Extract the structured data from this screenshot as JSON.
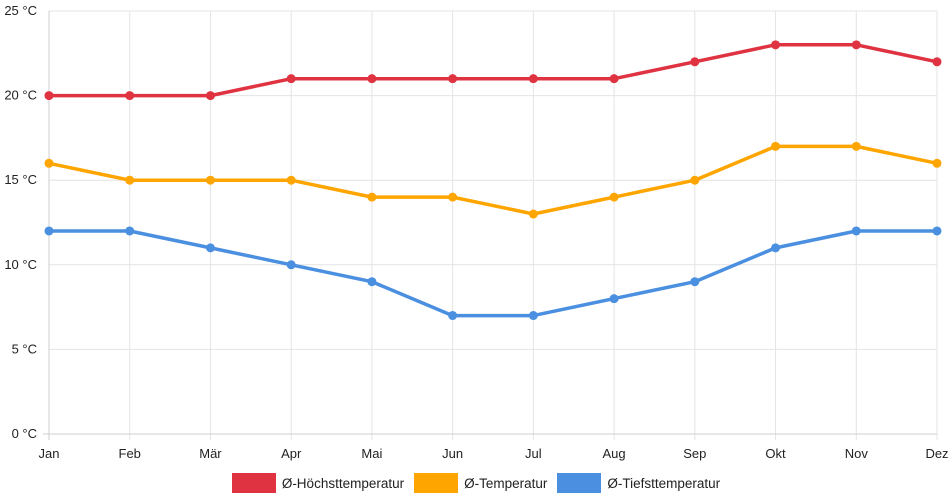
{
  "chart_data": {
    "type": "line",
    "categories": [
      "Jan",
      "Feb",
      "Mär",
      "Apr",
      "Mai",
      "Jun",
      "Jul",
      "Aug",
      "Sep",
      "Okt",
      "Nov",
      "Dez"
    ],
    "series": [
      {
        "name": "Ø-Höchsttemperatur",
        "color": "#e03342",
        "values": [
          20,
          20,
          20,
          21,
          21,
          21,
          21,
          21,
          22,
          23,
          23,
          22
        ]
      },
      {
        "name": "Ø-Temperatur",
        "color": "#ffa500",
        "values": [
          16,
          15,
          15,
          15,
          14,
          14,
          13,
          14,
          15,
          17,
          17,
          16
        ]
      },
      {
        "name": "Ø-Tiefsttemperatur",
        "color": "#4a8fe0",
        "values": [
          12,
          12,
          11,
          10,
          9,
          7,
          7,
          8,
          9,
          11,
          12,
          12
        ]
      }
    ],
    "y_ticks": [
      "0 °C",
      "5 °C",
      "10 °C",
      "15 °C",
      "20 °C",
      "25 °C"
    ],
    "ylim": [
      0,
      25
    ],
    "grid": true,
    "legend_position": "bottom"
  }
}
